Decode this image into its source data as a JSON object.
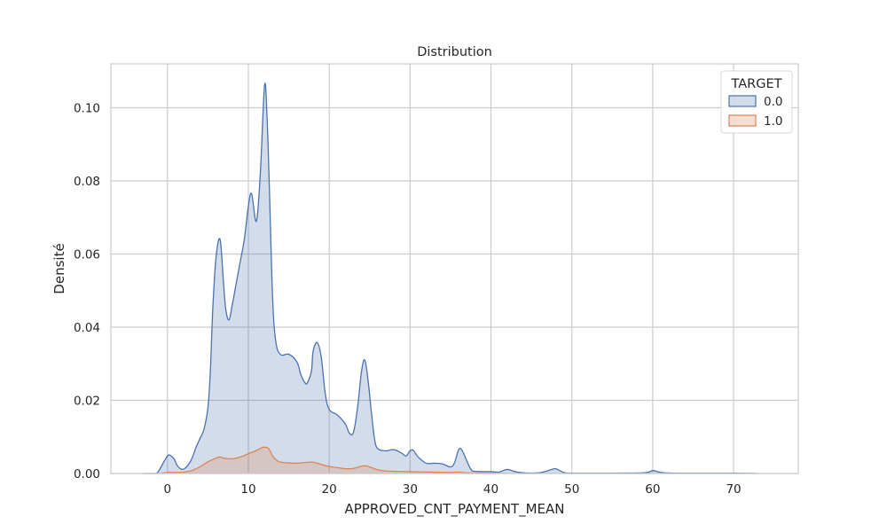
{
  "chart_data": {
    "type": "area",
    "title": "Distribution",
    "xlabel": "APPROVED_CNT_PAYMENT_MEAN",
    "ylabel": "Densité",
    "xlim": [
      -7,
      78
    ],
    "ylim": [
      0,
      0.112
    ],
    "x_ticks": [
      0,
      10,
      20,
      30,
      40,
      50,
      60,
      70
    ],
    "x_tick_labels": [
      "0",
      "10",
      "20",
      "30",
      "40",
      "50",
      "60",
      "70"
    ],
    "y_ticks": [
      0,
      0.02,
      0.04,
      0.06,
      0.08,
      0.1
    ],
    "y_tick_labels": [
      "0.00",
      "0.02",
      "0.04",
      "0.06",
      "0.08",
      "0.10"
    ],
    "grid": true,
    "legend": {
      "title": "TARGET",
      "position": "top-right"
    },
    "series": [
      {
        "name": "0.0",
        "line_color": "#4c72b0",
        "fill_color": "#4c72b0",
        "points": [
          [
            -3,
            0
          ],
          [
            -1.5,
            0
          ],
          [
            -1,
            0.001
          ],
          [
            -0.5,
            0.003
          ],
          [
            0,
            0.0048
          ],
          [
            0.3,
            0.005
          ],
          [
            0.8,
            0.004
          ],
          [
            1.2,
            0.0022
          ],
          [
            1.6,
            0.0013
          ],
          [
            2,
            0.0012
          ],
          [
            2.5,
            0.0022
          ],
          [
            3,
            0.004
          ],
          [
            3.5,
            0.007
          ],
          [
            4,
            0.0095
          ],
          [
            4.5,
            0.012
          ],
          [
            5,
            0.018
          ],
          [
            5.3,
            0.028
          ],
          [
            5.6,
            0.045
          ],
          [
            6,
            0.059
          ],
          [
            6.5,
            0.064
          ],
          [
            6.9,
            0.053
          ],
          [
            7.2,
            0.045
          ],
          [
            7.6,
            0.042
          ],
          [
            8,
            0.046
          ],
          [
            8.5,
            0.052
          ],
          [
            9,
            0.058
          ],
          [
            9.5,
            0.064
          ],
          [
            10,
            0.073
          ],
          [
            10.4,
            0.0765
          ],
          [
            11,
            0.069
          ],
          [
            11.5,
            0.083
          ],
          [
            12,
            0.106
          ],
          [
            12.3,
            0.098
          ],
          [
            12.6,
            0.078
          ],
          [
            13,
            0.048
          ],
          [
            13.4,
            0.036
          ],
          [
            14,
            0.0325
          ],
          [
            15,
            0.0326
          ],
          [
            16,
            0.0305
          ],
          [
            16.5,
            0.027
          ],
          [
            17,
            0.0248
          ],
          [
            17.3,
            0.0248
          ],
          [
            17.8,
            0.028
          ],
          [
            18,
            0.0333
          ],
          [
            18.5,
            0.0358
          ],
          [
            19,
            0.032
          ],
          [
            19.5,
            0.022
          ],
          [
            20,
            0.0175
          ],
          [
            21,
            0.016
          ],
          [
            22,
            0.0135
          ],
          [
            22.5,
            0.011
          ],
          [
            23,
            0.0113
          ],
          [
            23.5,
            0.018
          ],
          [
            24,
            0.028
          ],
          [
            24.4,
            0.031
          ],
          [
            24.8,
            0.0255
          ],
          [
            25.2,
            0.017
          ],
          [
            25.6,
            0.0095
          ],
          [
            26,
            0.0068
          ],
          [
            27,
            0.0062
          ],
          [
            28,
            0.0065
          ],
          [
            29,
            0.0055
          ],
          [
            29.5,
            0.0048
          ],
          [
            30,
            0.0062
          ],
          [
            30.4,
            0.0063
          ],
          [
            31,
            0.0045
          ],
          [
            32,
            0.0028
          ],
          [
            33,
            0.0028
          ],
          [
            34,
            0.0026
          ],
          [
            35,
            0.0018
          ],
          [
            35.5,
            0.003
          ],
          [
            36,
            0.0065
          ],
          [
            36.4,
            0.0064
          ],
          [
            37,
            0.0035
          ],
          [
            37.5,
            0.0012
          ],
          [
            38,
            0.0006
          ],
          [
            40,
            0.0005
          ],
          [
            41,
            0.0004
          ],
          [
            42,
            0.0011
          ],
          [
            43,
            0.0005
          ],
          [
            44,
            0.0002
          ],
          [
            46,
            0.0002
          ],
          [
            47.5,
            0.0011
          ],
          [
            48,
            0.0013
          ],
          [
            49,
            0.0003
          ],
          [
            50,
            0.0001
          ],
          [
            55,
            0.0001
          ],
          [
            59,
            0.0002
          ],
          [
            60,
            0.0008
          ],
          [
            61,
            0.0003
          ],
          [
            63,
            0.0001
          ],
          [
            70,
            0.0001
          ],
          [
            73,
            0
          ]
        ]
      },
      {
        "name": "1.0",
        "line_color": "#dd8452",
        "fill_color": "#dd8452",
        "points": [
          [
            -1,
            0
          ],
          [
            0,
            0.0003
          ],
          [
            1,
            0.0003
          ],
          [
            2,
            0.0004
          ],
          [
            3,
            0.0008
          ],
          [
            4,
            0.0018
          ],
          [
            5,
            0.0032
          ],
          [
            6,
            0.0042
          ],
          [
            6.5,
            0.0045
          ],
          [
            7,
            0.0042
          ],
          [
            8,
            0.004
          ],
          [
            9,
            0.0045
          ],
          [
            10,
            0.0054
          ],
          [
            11,
            0.0063
          ],
          [
            11.5,
            0.0069
          ],
          [
            12,
            0.0072
          ],
          [
            12.5,
            0.0068
          ],
          [
            13,
            0.0048
          ],
          [
            13.5,
            0.0036
          ],
          [
            14,
            0.0031
          ],
          [
            15,
            0.0029
          ],
          [
            16,
            0.0028
          ],
          [
            17,
            0.003
          ],
          [
            18,
            0.0031
          ],
          [
            19,
            0.0025
          ],
          [
            20,
            0.0019
          ],
          [
            21,
            0.0016
          ],
          [
            22,
            0.0013
          ],
          [
            23,
            0.0014
          ],
          [
            24,
            0.002
          ],
          [
            24.5,
            0.0021
          ],
          [
            25,
            0.0018
          ],
          [
            26,
            0.001
          ],
          [
            27,
            0.0007
          ],
          [
            28,
            0.0006
          ],
          [
            30,
            0.0005
          ],
          [
            32,
            0.0004
          ],
          [
            35,
            0.0003
          ],
          [
            36,
            0.0004
          ],
          [
            37,
            0.0002
          ],
          [
            40,
            0.0001
          ],
          [
            42,
            0
          ]
        ]
      }
    ]
  }
}
